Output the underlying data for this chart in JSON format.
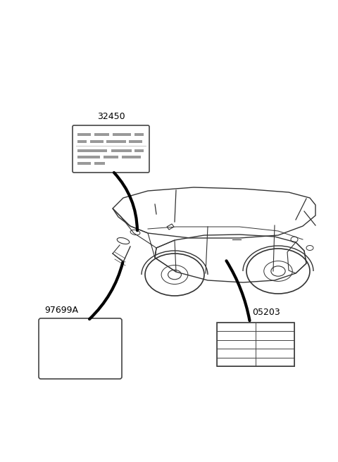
{
  "bg_color": "#ffffff",
  "line_color": "#444444",
  "car_color": "#333333",
  "label_32450": "32450",
  "label_97699A": "97699A",
  "label_05203": "05203",
  "figsize": [
    4.8,
    6.56
  ],
  "dpi": 100
}
